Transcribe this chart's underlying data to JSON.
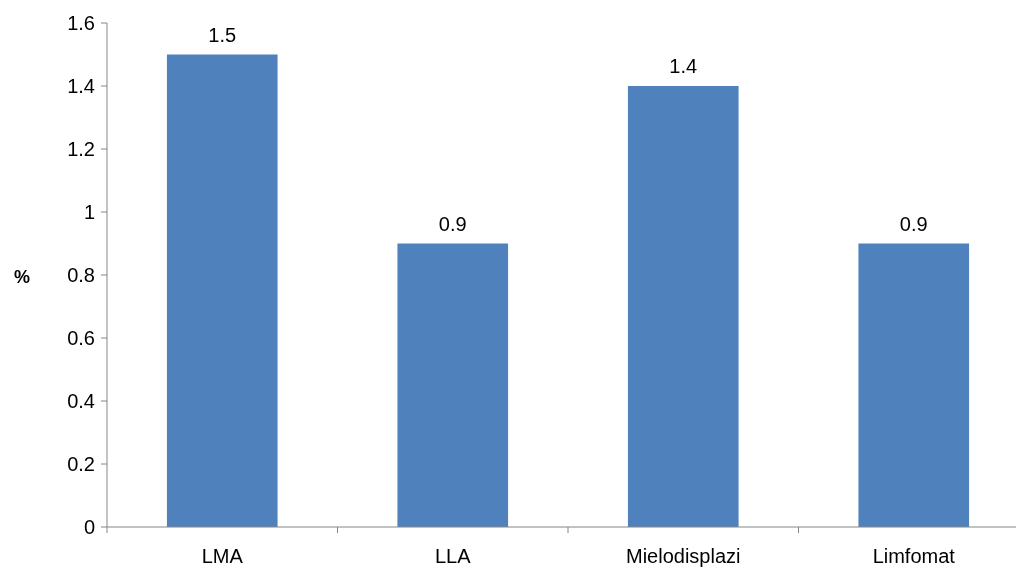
{
  "chart_data": {
    "type": "bar",
    "categories": [
      "LMA",
      "LLA",
      "Mielodisplazi",
      "Limfomat"
    ],
    "values": [
      1.5,
      0.9,
      1.4,
      0.9
    ],
    "color": "#4f81bd",
    "ylabel": "%",
    "ylim": [
      0,
      1.6
    ],
    "yticks": [
      0,
      0.2,
      0.4,
      0.6,
      0.8,
      1,
      1.2,
      1.4,
      1.6
    ],
    "data_labels": true
  }
}
